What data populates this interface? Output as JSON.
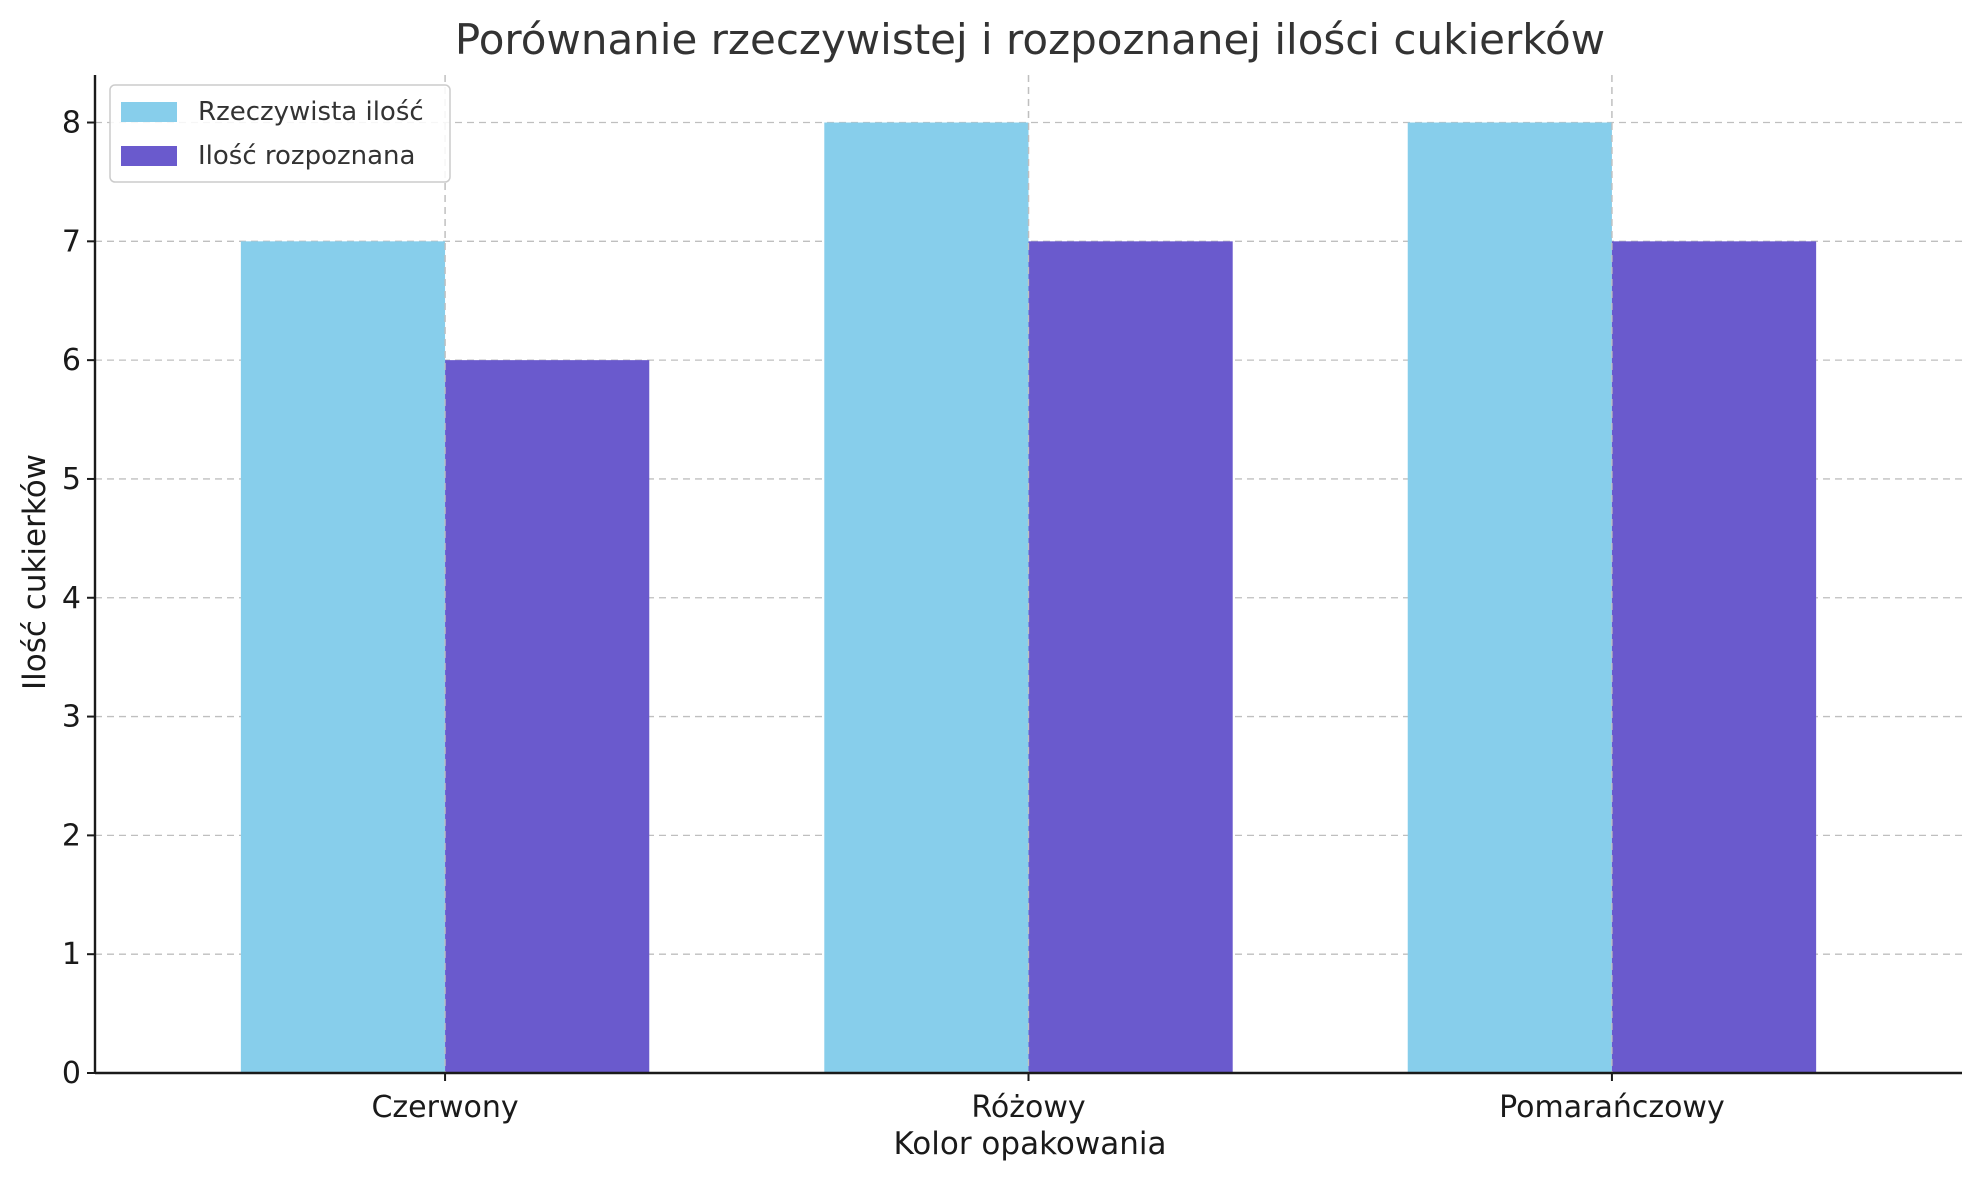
{
  "chart_data": {
    "type": "bar",
    "title": "Porównanie rzeczywistej i rozpoznanej ilości cukierków",
    "xlabel": "Kolor opakowania",
    "ylabel": "Ilość cukierków",
    "categories": [
      "Czerwony",
      "Różowy",
      "Pomarańczowy"
    ],
    "series": [
      {
        "name": "Rzeczywista ilość",
        "values": [
          7,
          8,
          8
        ],
        "color": "#87CEEB"
      },
      {
        "name": "Ilość rozpoznana",
        "values": [
          6,
          7,
          7
        ],
        "color": "#6A5ACD"
      }
    ],
    "ylim": [
      0,
      8.4
    ],
    "yticks": [
      0,
      1,
      2,
      3,
      4,
      5,
      6,
      7,
      8
    ],
    "grid": true,
    "legend_position": "top-left"
  }
}
